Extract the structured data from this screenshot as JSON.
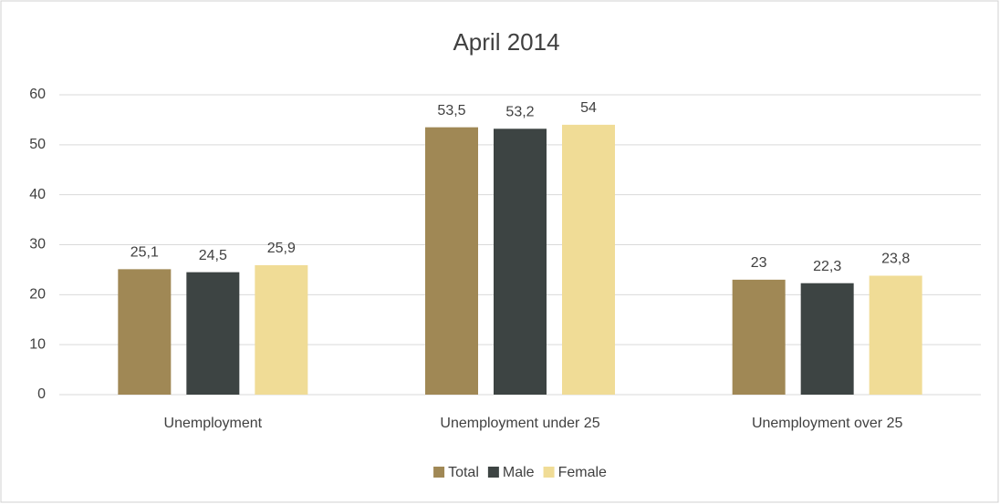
{
  "chart_data": {
    "type": "bar",
    "title": "April 2014",
    "categories": [
      "Unemployment",
      "Unemployment under 25",
      "Unemployment over 25"
    ],
    "series": [
      {
        "name": "Total",
        "color": "#a08855",
        "values": [
          25.1,
          53.5,
          23
        ],
        "value_labels": [
          "25,1",
          "53,5",
          "23"
        ]
      },
      {
        "name": "Male",
        "color": "#3d4443",
        "values": [
          24.5,
          53.2,
          22.3
        ],
        "value_labels": [
          "24,5",
          "53,2",
          "22,3"
        ]
      },
      {
        "name": "Female",
        "color": "#f0dc96",
        "values": [
          25.9,
          54,
          23.8
        ],
        "value_labels": [
          "25,9",
          "54",
          "23,8"
        ]
      }
    ],
    "ylim": [
      0,
      60
    ],
    "yticks": [
      0,
      10,
      20,
      30,
      40,
      50,
      60
    ],
    "grid": true,
    "legend": "bottom"
  }
}
